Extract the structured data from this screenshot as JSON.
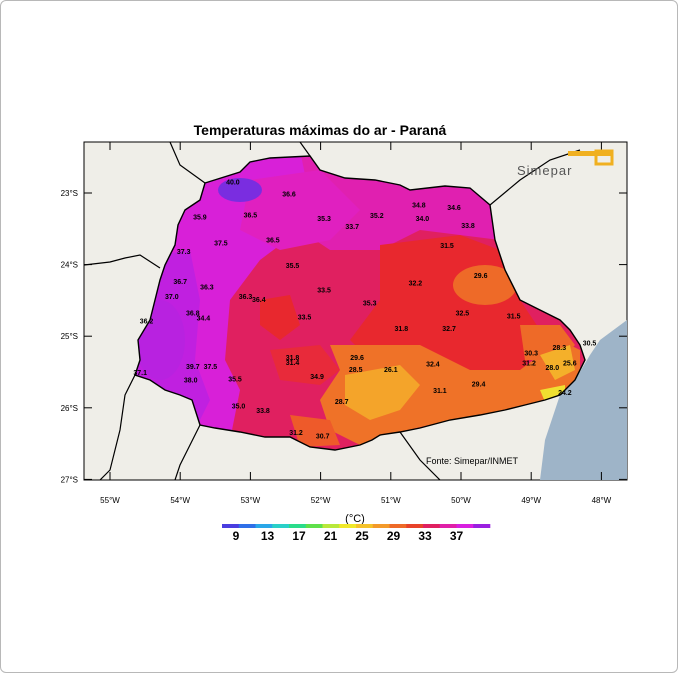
{
  "title": "Temperaturas máximas do ar - Paraná",
  "logo_text": "Simepar",
  "source": "Fonte: Simepar/INMET",
  "unit": "(°C)",
  "lat_ticks": [
    "23°S",
    "24°S",
    "25°S",
    "26°S",
    "27°S"
  ],
  "lon_ticks": [
    "55°W",
    "54°W",
    "53°W",
    "52°W",
    "51°W",
    "50°W",
    "49°W",
    "48°W"
  ],
  "colorbar": {
    "labels": [
      "9",
      "13",
      "17",
      "21",
      "25",
      "29",
      "33",
      "37"
    ],
    "colors": [
      "#4a3de0",
      "#2f6fe8",
      "#2aa7e8",
      "#2ad0c8",
      "#2adc8a",
      "#5fe04a",
      "#b8e83a",
      "#f0e82a",
      "#f5c22a",
      "#f39a2a",
      "#ee6a28",
      "#e8422a",
      "#e02060",
      "#e020a8",
      "#d820e0",
      "#9a20e0"
    ]
  },
  "stations": [
    {
      "v": "40.0",
      "lon": -53.25,
      "lat": -22.88
    },
    {
      "v": "36.6",
      "lon": -52.45,
      "lat": -23.05
    },
    {
      "v": "35.9",
      "lon": -53.72,
      "lat": -23.37
    },
    {
      "v": "36.5",
      "lon": -53.0,
      "lat": -23.34
    },
    {
      "v": "35.3",
      "lon": -51.95,
      "lat": -23.39
    },
    {
      "v": "35.2",
      "lon": -51.2,
      "lat": -23.35
    },
    {
      "v": "34.8",
      "lon": -50.6,
      "lat": -23.2
    },
    {
      "v": "34.6",
      "lon": -50.1,
      "lat": -23.24
    },
    {
      "v": "34.0",
      "lon": -50.55,
      "lat": -23.39
    },
    {
      "v": "33.7",
      "lon": -51.55,
      "lat": -23.5
    },
    {
      "v": "33.8",
      "lon": -49.9,
      "lat": -23.49
    },
    {
      "v": "37.5",
      "lon": -53.42,
      "lat": -23.73
    },
    {
      "v": "36.5",
      "lon": -52.68,
      "lat": -23.69
    },
    {
      "v": "37.3",
      "lon": -53.95,
      "lat": -23.85
    },
    {
      "v": "31.5",
      "lon": -50.2,
      "lat": -23.77
    },
    {
      "v": "35.5",
      "lon": -52.4,
      "lat": -24.05
    },
    {
      "v": "29.6",
      "lon": -49.72,
      "lat": -24.19
    },
    {
      "v": "36.7",
      "lon": -54.0,
      "lat": -24.27
    },
    {
      "v": "36.3",
      "lon": -53.62,
      "lat": -24.35
    },
    {
      "v": "32.2",
      "lon": -50.65,
      "lat": -24.29
    },
    {
      "v": "33.5",
      "lon": -51.95,
      "lat": -24.39
    },
    {
      "v": "37.0",
      "lon": -54.12,
      "lat": -24.48
    },
    {
      "v": "36.3",
      "lon": -53.07,
      "lat": -24.48
    },
    {
      "v": "36.4",
      "lon": -52.88,
      "lat": -24.52
    },
    {
      "v": "35.3",
      "lon": -51.3,
      "lat": -24.57
    },
    {
      "v": "36.8",
      "lon": -53.82,
      "lat": -24.71
    },
    {
      "v": "34.4",
      "lon": -53.67,
      "lat": -24.78
    },
    {
      "v": "33.5",
      "lon": -52.23,
      "lat": -24.77
    },
    {
      "v": "32.5",
      "lon": -49.98,
      "lat": -24.71
    },
    {
      "v": "31.5",
      "lon": -49.25,
      "lat": -24.75
    },
    {
      "v": "36.2",
      "lon": -54.48,
      "lat": -24.82
    },
    {
      "v": "31.8",
      "lon": -50.85,
      "lat": -24.93
    },
    {
      "v": "32.7",
      "lon": -50.17,
      "lat": -24.93
    },
    {
      "v": "30.5",
      "lon": -48.17,
      "lat": -25.13
    },
    {
      "v": "28.3",
      "lon": -48.6,
      "lat": -25.19
    },
    {
      "v": "30.3",
      "lon": -49.0,
      "lat": -25.27
    },
    {
      "v": "31.8",
      "lon": -52.4,
      "lat": -25.33
    },
    {
      "v": "31.4",
      "lon": -52.4,
      "lat": -25.4
    },
    {
      "v": "29.6",
      "lon": -51.48,
      "lat": -25.33
    },
    {
      "v": "31.2",
      "lon": -49.03,
      "lat": -25.41
    },
    {
      "v": "25.6",
      "lon": -48.45,
      "lat": -25.41
    },
    {
      "v": "28.0",
      "lon": -48.7,
      "lat": -25.47
    },
    {
      "v": "32.4",
      "lon": -50.4,
      "lat": -25.42
    },
    {
      "v": "39.7",
      "lon": -53.82,
      "lat": -25.46
    },
    {
      "v": "37.5",
      "lon": -53.57,
      "lat": -25.46
    },
    {
      "v": "28.5",
      "lon": -51.5,
      "lat": -25.5
    },
    {
      "v": "26.1",
      "lon": -51.0,
      "lat": -25.5
    },
    {
      "v": "37.1",
      "lon": -54.57,
      "lat": -25.54
    },
    {
      "v": "34.9",
      "lon": -52.05,
      "lat": -25.6
    },
    {
      "v": "35.5",
      "lon": -53.22,
      "lat": -25.63
    },
    {
      "v": "38.0",
      "lon": -53.85,
      "lat": -25.65
    },
    {
      "v": "29.4",
      "lon": -49.75,
      "lat": -25.7
    },
    {
      "v": "31.1",
      "lon": -50.3,
      "lat": -25.79
    },
    {
      "v": "24.2",
      "lon": -48.52,
      "lat": -25.82
    },
    {
      "v": "28.7",
      "lon": -51.7,
      "lat": -25.95
    },
    {
      "v": "35.0",
      "lon": -53.17,
      "lat": -26.01
    },
    {
      "v": "33.8",
      "lon": -52.82,
      "lat": -26.07
    },
    {
      "v": "31.2",
      "lon": -52.35,
      "lat": -26.38
    },
    {
      "v": "30.7",
      "lon": -51.97,
      "lat": -26.43
    }
  ]
}
